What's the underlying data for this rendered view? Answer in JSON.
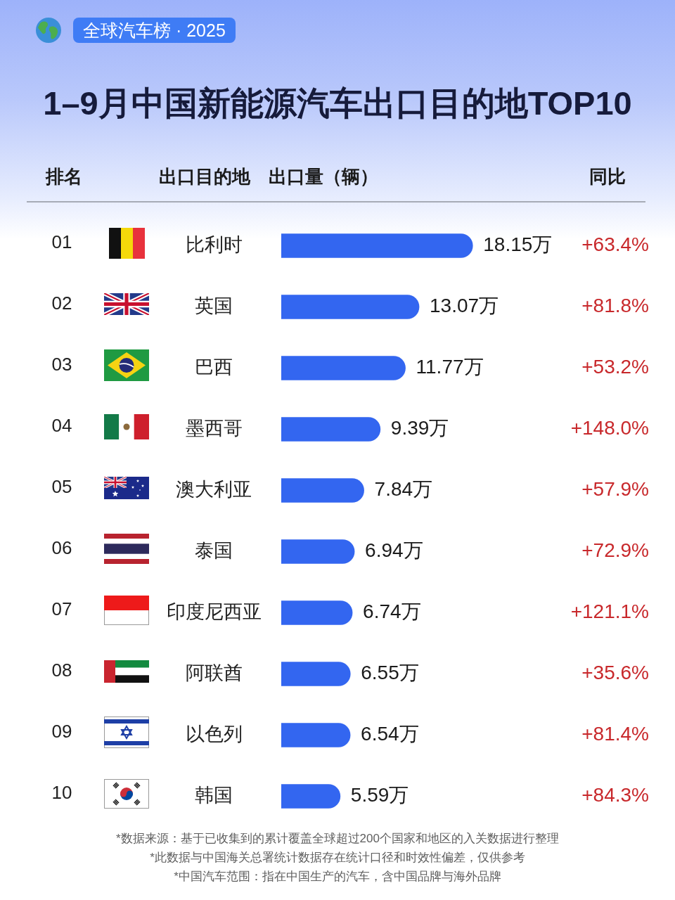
{
  "chart_data": {
    "type": "bar",
    "orientation": "horizontal",
    "title": "1–9月中国新能源汽车出口目的地TOP10",
    "subtitle": "全球汽车榜 · 2025",
    "xlabel": "出口量（辆）",
    "ylabel": "出口目的地",
    "categories": [
      "比利时",
      "英国",
      "巴西",
      "墨西哥",
      "澳大利亚",
      "泰国",
      "印度尼西亚",
      "阿联酋",
      "以色列",
      "韩国"
    ],
    "values": [
      18.15,
      13.07,
      11.77,
      9.39,
      7.84,
      6.94,
      6.74,
      6.55,
      6.54,
      5.59
    ],
    "value_labels": [
      "18.15万",
      "13.07万",
      "11.77万",
      "9.39万",
      "7.84万",
      "6.94万",
      "6.74万",
      "6.55万",
      "6.54万",
      "5.59万"
    ],
    "color": "#3366f0",
    "tick_labels": "y",
    "annotations": [
      "排名",
      "同比",
      "01",
      "+63.4%",
      "02",
      "+81.8%",
      "03",
      "+53.2%",
      "04",
      "+148.0%",
      "05",
      "+57.9%",
      "06",
      "+72.9%",
      "07",
      "+121.1%",
      "08",
      "+35.6%",
      "09",
      "+81.4%",
      "10",
      "+84.3%",
      "*数据来源：基于已收集到的累计覆盖全球超过200个国家和地区的入关数据进行整理",
      "*此数据与中国海关总署统计数据存在统计口径和时效性偏差，仅供参考",
      "*中国汽车范围：指在中国生产的汽车，含中国品牌与海外品牌"
    ]
  }
}
